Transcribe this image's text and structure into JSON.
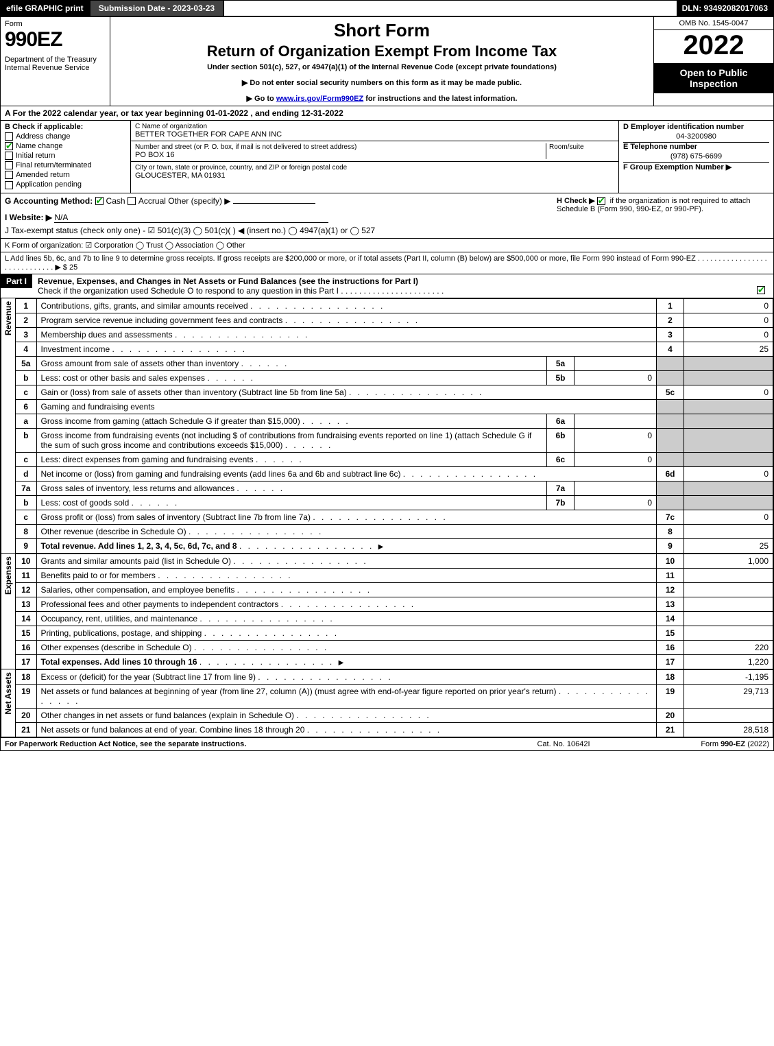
{
  "topbar": {
    "efile": "efile GRAPHIC print",
    "subdate": "Submission Date - 2023-03-23",
    "dln": "DLN: 93492082017063"
  },
  "header": {
    "form": "Form",
    "formnum": "990EZ",
    "dept": "Department of the Treasury\nInternal Revenue Service",
    "short": "Short Form",
    "return": "Return of Organization Exempt From Income Tax",
    "under": "Under section 501(c), 527, or 4947(a)(1) of the Internal Revenue Code (except private foundations)",
    "note1": "▶ Do not enter social security numbers on this form as it may be made public.",
    "note2_a": "▶ Go to ",
    "note2_link": "www.irs.gov/Form990EZ",
    "note2_b": " for instructions and the latest information.",
    "omb": "OMB No. 1545-0047",
    "year": "2022",
    "open": "Open to Public Inspection"
  },
  "lineA": "A  For the 2022 calendar year, or tax year beginning 01-01-2022  , and ending 12-31-2022",
  "secB": {
    "title": "B  Check if applicable:",
    "opts": [
      {
        "lbl": "Address change",
        "on": false
      },
      {
        "lbl": "Name change",
        "on": true
      },
      {
        "lbl": "Initial return",
        "on": false
      },
      {
        "lbl": "Final return/terminated",
        "on": false
      },
      {
        "lbl": "Amended return",
        "on": false
      },
      {
        "lbl": "Application pending",
        "on": false
      }
    ]
  },
  "secC": {
    "c_lbl": "C Name of organization",
    "c_val": "BETTER TOGETHER FOR CAPE ANN INC",
    "addr_lbl": "Number and street (or P. O. box, if mail is not delivered to street address)",
    "room_lbl": "Room/suite",
    "addr_val": "PO BOX 16",
    "city_lbl": "City or town, state or province, country, and ZIP or foreign postal code",
    "city_val": "GLOUCESTER, MA  01931"
  },
  "secD": {
    "d_lbl": "D Employer identification number",
    "d_val": "04-3200980",
    "e_lbl": "E Telephone number",
    "e_val": "(978) 675-6699",
    "f_lbl": "F Group Exemption Number  ▶"
  },
  "secG": {
    "g_lbl": "G Accounting Method:",
    "g_cash": "Cash",
    "g_accr": "Accrual",
    "g_other": "Other (specify) ▶",
    "h_lbl": "H  Check ▶",
    "h_txt": "if the organization is not required to attach Schedule B (Form 990, 990-EZ, or 990-PF)."
  },
  "lineI": {
    "lbl": "I Website: ▶",
    "val": "N/A"
  },
  "lineJ": "J Tax-exempt status (check only one) - ☑ 501(c)(3)  ◯ 501(c)(  ) ◀ (insert no.)  ◯ 4947(a)(1) or  ◯ 527",
  "lineK": "K Form of organization:  ☑ Corporation  ◯ Trust  ◯ Association  ◯ Other",
  "lineL": "L Add lines 5b, 6c, and 7b to line 9 to determine gross receipts. If gross receipts are $200,000 or more, or if total assets (Part II, column (B) below) are $500,000 or more, file Form 990 instead of Form 990-EZ  . . . . . . . . . . . . . . . . . . . . . . . . . . . . .  ▶ $ 25",
  "part1": {
    "label": "Part I",
    "title": "Revenue, Expenses, and Changes in Net Assets or Fund Balances (see the instructions for Part I)",
    "sub": "Check if the organization used Schedule O to respond to any question in this Part I . . . . . . . . . . . . . . . . . . . . . . ."
  },
  "sections": {
    "revenue": "Revenue",
    "expenses": "Expenses",
    "net": "Net Assets"
  },
  "rows": [
    {
      "ln": "1",
      "desc": "Contributions, gifts, grants, and similar amounts received",
      "num": "1",
      "val": "0"
    },
    {
      "ln": "2",
      "desc": "Program service revenue including government fees and contracts",
      "num": "2",
      "val": "0"
    },
    {
      "ln": "3",
      "desc": "Membership dues and assessments",
      "num": "3",
      "val": "0"
    },
    {
      "ln": "4",
      "desc": "Investment income",
      "num": "4",
      "val": "25"
    },
    {
      "ln": "5a",
      "desc": "Gross amount from sale of assets other than inventory",
      "mini": "5a",
      "minival": ""
    },
    {
      "ln": "b",
      "desc": "Less: cost or other basis and sales expenses",
      "mini": "5b",
      "minival": "0"
    },
    {
      "ln": "c",
      "desc": "Gain or (loss) from sale of assets other than inventory (Subtract line 5b from line 5a)",
      "num": "5c",
      "val": "0"
    },
    {
      "ln": "6",
      "desc": "Gaming and fundraising events"
    },
    {
      "ln": "a",
      "desc": "Gross income from gaming (attach Schedule G if greater than $15,000)",
      "mini": "6a",
      "minival": ""
    },
    {
      "ln": "b",
      "desc": "Gross income from fundraising events (not including $                   of contributions from fundraising events reported on line 1) (attach Schedule G if the sum of such gross income and contributions exceeds $15,000)",
      "mini": "6b",
      "minival": "0"
    },
    {
      "ln": "c",
      "desc": "Less: direct expenses from gaming and fundraising events",
      "mini": "6c",
      "minival": "0"
    },
    {
      "ln": "d",
      "desc": "Net income or (loss) from gaming and fundraising events (add lines 6a and 6b and subtract line 6c)",
      "num": "6d",
      "val": "0"
    },
    {
      "ln": "7a",
      "desc": "Gross sales of inventory, less returns and allowances",
      "mini": "7a",
      "minival": ""
    },
    {
      "ln": "b",
      "desc": "Less: cost of goods sold",
      "mini": "7b",
      "minival": "0"
    },
    {
      "ln": "c",
      "desc": "Gross profit or (loss) from sales of inventory (Subtract line 7b from line 7a)",
      "num": "7c",
      "val": "0"
    },
    {
      "ln": "8",
      "desc": "Other revenue (describe in Schedule O)",
      "num": "8",
      "val": ""
    },
    {
      "ln": "9",
      "desc": "Total revenue. Add lines 1, 2, 3, 4, 5c, 6d, 7c, and 8",
      "num": "9",
      "val": "25",
      "bold": true,
      "arrow": true
    }
  ],
  "exp": [
    {
      "ln": "10",
      "desc": "Grants and similar amounts paid (list in Schedule O)",
      "num": "10",
      "val": "1,000"
    },
    {
      "ln": "11",
      "desc": "Benefits paid to or for members",
      "num": "11",
      "val": ""
    },
    {
      "ln": "12",
      "desc": "Salaries, other compensation, and employee benefits",
      "num": "12",
      "val": ""
    },
    {
      "ln": "13",
      "desc": "Professional fees and other payments to independent contractors",
      "num": "13",
      "val": ""
    },
    {
      "ln": "14",
      "desc": "Occupancy, rent, utilities, and maintenance",
      "num": "14",
      "val": ""
    },
    {
      "ln": "15",
      "desc": "Printing, publications, postage, and shipping",
      "num": "15",
      "val": ""
    },
    {
      "ln": "16",
      "desc": "Other expenses (describe in Schedule O)",
      "num": "16",
      "val": "220"
    },
    {
      "ln": "17",
      "desc": "Total expenses. Add lines 10 through 16",
      "num": "17",
      "val": "1,220",
      "bold": true,
      "arrow": true
    }
  ],
  "net": [
    {
      "ln": "18",
      "desc": "Excess or (deficit) for the year (Subtract line 17 from line 9)",
      "num": "18",
      "val": "-1,195"
    },
    {
      "ln": "19",
      "desc": "Net assets or fund balances at beginning of year (from line 27, column (A)) (must agree with end-of-year figure reported on prior year's return)",
      "num": "19",
      "val": "29,713"
    },
    {
      "ln": "20",
      "desc": "Other changes in net assets or fund balances (explain in Schedule O)",
      "num": "20",
      "val": ""
    },
    {
      "ln": "21",
      "desc": "Net assets or fund balances at end of year. Combine lines 18 through 20",
      "num": "21",
      "val": "28,518"
    }
  ],
  "footer": {
    "f1": "For Paperwork Reduction Act Notice, see the separate instructions.",
    "f2": "Cat. No. 10642I",
    "f3": "Form 990-EZ (2022)"
  }
}
